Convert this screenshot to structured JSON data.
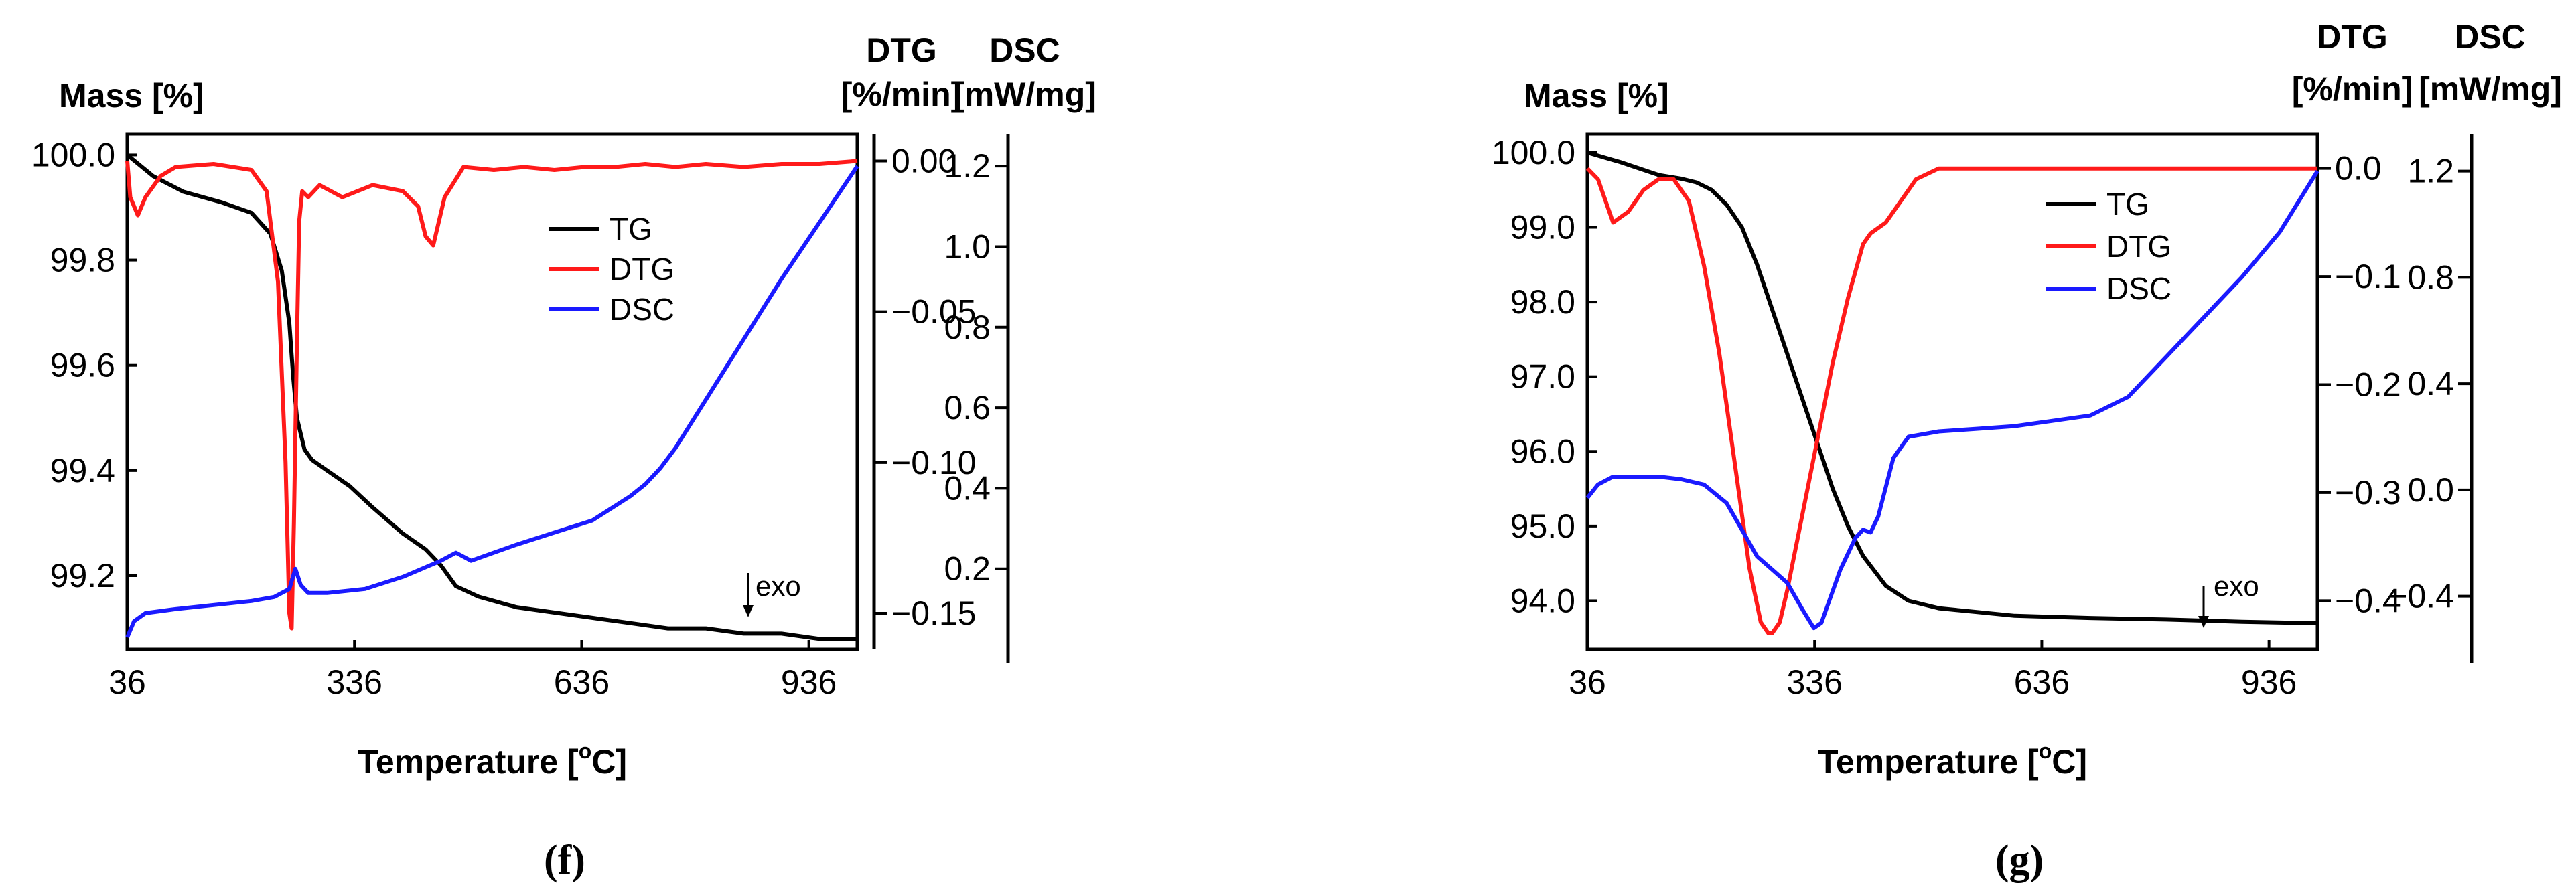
{
  "colors": {
    "TG": "#000000",
    "DTG": "#ff1a1a",
    "DSC": "#1a1aff"
  },
  "chart_data": [
    {
      "type": "line",
      "panel_label": "(f)",
      "xlabel": "Temperature [",
      "xunit_sup": "o",
      "xunit_end": "C]",
      "xlim": [
        36,
        1000
      ],
      "xticks": [
        "36",
        "336",
        "636",
        "936"
      ],
      "left_axis": {
        "title": "Mass [%]",
        "ylim": [
          99.06,
          100.04
        ],
        "ticks": [
          "100.0",
          "99.8",
          "99.6",
          "99.4",
          "99.2"
        ]
      },
      "dtg_axis": {
        "title_line1": "DTG",
        "title_line2": "[%/min]",
        "ylim": [
          -0.162,
          0.009
        ],
        "ticks": [
          "0.00",
          "−0.05",
          "−0.10",
          "−0.15"
        ]
      },
      "dsc_axis": {
        "title_line1": "DSC",
        "title_line2": "[mW/mg]",
        "ylim": [
          0.0,
          1.28
        ],
        "ticks": [
          "1.2",
          "1.0",
          "0.8",
          "0.6",
          "0.4",
          "0.2"
        ]
      },
      "annotation": "exo",
      "annotation_at": [
        900,
        99.16
      ],
      "legend": [
        "TG",
        "DTG",
        "DSC"
      ],
      "series": [
        {
          "name": "TG",
          "axis": "mass",
          "x": [
            36,
            70,
            110,
            160,
            200,
            225,
            240,
            250,
            255,
            260,
            270,
            280,
            300,
            330,
            360,
            400,
            430,
            450,
            470,
            500,
            550,
            600,
            650,
            700,
            750,
            800,
            850,
            900,
            950,
            1000
          ],
          "y": [
            100.0,
            99.96,
            99.93,
            99.91,
            99.89,
            99.85,
            99.78,
            99.68,
            99.58,
            99.5,
            99.44,
            99.42,
            99.4,
            99.37,
            99.33,
            99.28,
            99.25,
            99.22,
            99.18,
            99.16,
            99.14,
            99.13,
            99.12,
            99.11,
            99.1,
            99.1,
            99.09,
            99.09,
            99.08,
            99.08
          ]
        },
        {
          "name": "DTG",
          "axis": "dtg",
          "x": [
            36,
            40,
            50,
            60,
            80,
            100,
            150,
            200,
            220,
            235,
            245,
            250,
            253,
            256,
            260,
            263,
            267,
            275,
            290,
            320,
            360,
            400,
            420,
            430,
            440,
            455,
            480,
            520,
            560,
            600,
            640,
            680,
            720,
            760,
            800,
            850,
            900,
            950,
            1000
          ],
          "y": [
            0.0,
            -0.012,
            -0.018,
            -0.012,
            -0.005,
            -0.002,
            -0.001,
            -0.003,
            -0.01,
            -0.04,
            -0.1,
            -0.15,
            -0.155,
            -0.12,
            -0.06,
            -0.02,
            -0.01,
            -0.012,
            -0.008,
            -0.012,
            -0.008,
            -0.01,
            -0.015,
            -0.025,
            -0.028,
            -0.012,
            -0.002,
            -0.003,
            -0.002,
            -0.003,
            -0.002,
            -0.002,
            -0.001,
            -0.002,
            -0.001,
            -0.002,
            -0.001,
            -0.001,
            0.0
          ]
        },
        {
          "name": "DSC",
          "axis": "dsc",
          "x": [
            36,
            45,
            60,
            100,
            150,
            200,
            230,
            240,
            250,
            258,
            265,
            275,
            300,
            350,
            400,
            450,
            470,
            480,
            490,
            520,
            550,
            600,
            650,
            700,
            720,
            740,
            760,
            780,
            800,
            850,
            900,
            950,
            1000
          ],
          "y": [
            0.03,
            0.07,
            0.09,
            0.1,
            0.11,
            0.12,
            0.13,
            0.14,
            0.15,
            0.2,
            0.16,
            0.14,
            0.14,
            0.15,
            0.18,
            0.22,
            0.24,
            0.23,
            0.22,
            0.24,
            0.26,
            0.29,
            0.32,
            0.38,
            0.41,
            0.45,
            0.5,
            0.56,
            0.62,
            0.77,
            0.92,
            1.06,
            1.2
          ]
        }
      ]
    },
    {
      "type": "line",
      "panel_label": "(g)",
      "xlabel": "Temperature [",
      "xunit_sup": "o",
      "xunit_end": "C]",
      "xlim": [
        36,
        1000
      ],
      "xticks": [
        "36",
        "336",
        "636",
        "936"
      ],
      "left_axis": {
        "title": "Mass [%]",
        "ylim": [
          93.35,
          100.25
        ],
        "ticks": [
          "100.0",
          "99.0",
          "98.0",
          "97.0",
          "96.0",
          "95.0",
          "94.0"
        ]
      },
      "dtg_axis": {
        "title_line1": "DTG",
        "title_line2": "[%/min]",
        "ylim": [
          -0.445,
          0.032
        ],
        "ticks": [
          "0.0",
          "−0.1",
          "−0.2",
          "−0.3",
          "−0.4"
        ]
      },
      "dsc_axis": {
        "title_line1": "DSC",
        "title_line2": "[mW/mg]",
        "ylim": [
          -0.6,
          1.34
        ],
        "ticks": [
          "1.2",
          "0.8",
          "0.4",
          "0.0",
          "−0.4"
        ]
      },
      "annotation": "exo",
      "annotation_at": [
        900,
        94.3
      ],
      "legend": [
        "TG",
        "DTG",
        "DSC"
      ],
      "series": [
        {
          "name": "TG",
          "axis": "mass",
          "x": [
            36,
            80,
            130,
            160,
            180,
            200,
            220,
            240,
            260,
            280,
            300,
            320,
            340,
            360,
            380,
            400,
            430,
            460,
            500,
            550,
            600,
            700,
            800,
            900,
            1000
          ],
          "y": [
            100.0,
            99.87,
            99.7,
            99.65,
            99.6,
            99.5,
            99.3,
            99.0,
            98.5,
            97.9,
            97.3,
            96.7,
            96.1,
            95.5,
            95.0,
            94.6,
            94.2,
            94.0,
            93.9,
            93.85,
            93.8,
            93.77,
            93.75,
            93.72,
            93.7
          ]
        },
        {
          "name": "DTG",
          "axis": "dtg",
          "x": [
            36,
            50,
            70,
            90,
            110,
            130,
            150,
            170,
            190,
            210,
            230,
            250,
            265,
            275,
            280,
            290,
            300,
            320,
            340,
            360,
            380,
            400,
            410,
            430,
            450,
            470,
            500,
            550,
            600,
            650,
            700,
            750,
            800,
            850,
            900,
            950,
            1000
          ],
          "y": [
            0.0,
            -0.01,
            -0.05,
            -0.04,
            -0.02,
            -0.01,
            -0.01,
            -0.03,
            -0.09,
            -0.17,
            -0.27,
            -0.37,
            -0.42,
            -0.43,
            -0.43,
            -0.42,
            -0.39,
            -0.32,
            -0.25,
            -0.18,
            -0.12,
            -0.07,
            -0.06,
            -0.05,
            -0.03,
            -0.01,
            0.0,
            0.0,
            0.0,
            0.0,
            0.0,
            0.0,
            0.0,
            0.0,
            0.0,
            0.0,
            0.0
          ]
        },
        {
          "name": "DSC",
          "axis": "dsc",
          "x": [
            36,
            50,
            70,
            100,
            130,
            160,
            190,
            220,
            240,
            260,
            280,
            300,
            320,
            335,
            345,
            355,
            370,
            390,
            400,
            410,
            420,
            440,
            460,
            500,
            550,
            600,
            650,
            700,
            750,
            800,
            850,
            900,
            950,
            1000
          ],
          "y": [
            -0.03,
            0.02,
            0.05,
            0.05,
            0.05,
            0.04,
            0.02,
            -0.05,
            -0.15,
            -0.25,
            -0.3,
            -0.35,
            -0.45,
            -0.52,
            -0.5,
            -0.42,
            -0.3,
            -0.18,
            -0.15,
            -0.16,
            -0.1,
            0.12,
            0.2,
            0.22,
            0.23,
            0.24,
            0.26,
            0.28,
            0.35,
            0.5,
            0.65,
            0.8,
            0.97,
            1.2
          ]
        }
      ]
    }
  ]
}
